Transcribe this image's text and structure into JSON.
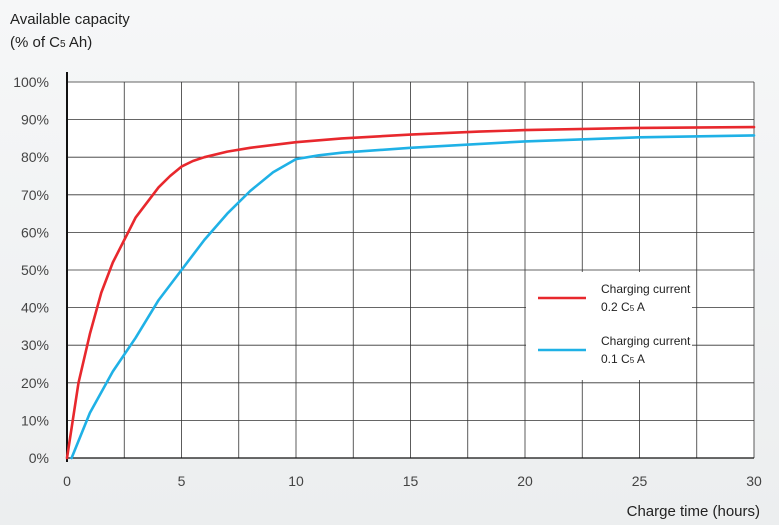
{
  "chart_data": {
    "type": "line",
    "ylabel_line1": "Available capacity",
    "ylabel_line2": "(% of C",
    "ylabel_sub": "5",
    "ylabel_tail": " Ah)",
    "xlabel": "Charge time (hours)",
    "xlim": [
      0,
      30
    ],
    "ylim": [
      0,
      100
    ],
    "x_ticks": [
      0,
      5,
      10,
      15,
      20,
      25,
      30
    ],
    "y_ticks": [
      0,
      10,
      20,
      30,
      40,
      50,
      60,
      70,
      80,
      90,
      100
    ],
    "y_tick_suffix": "%",
    "grid": true,
    "legend_position": "right",
    "series": [
      {
        "name": "Charging current 0.2 C5 A",
        "legend_line1": "Charging current",
        "legend_line2_pre": "0.2 C",
        "legend_line2_sub": "5",
        "legend_line2_post": " A",
        "color": "#e8282d",
        "points": [
          [
            0,
            0
          ],
          [
            0.5,
            20
          ],
          [
            1,
            33
          ],
          [
            1.5,
            44
          ],
          [
            2,
            52
          ],
          [
            2.5,
            58
          ],
          [
            3,
            64
          ],
          [
            3.5,
            68
          ],
          [
            4,
            72
          ],
          [
            4.5,
            75
          ],
          [
            5,
            77.5
          ],
          [
            5.5,
            79
          ],
          [
            6,
            80
          ],
          [
            7,
            81.5
          ],
          [
            8,
            82.5
          ],
          [
            10,
            84
          ],
          [
            12,
            85
          ],
          [
            15,
            86
          ],
          [
            18,
            86.8
          ],
          [
            20,
            87.2
          ],
          [
            25,
            87.8
          ],
          [
            30,
            88
          ]
        ]
      },
      {
        "name": "Charging current 0.1 C5 A",
        "legend_line1": "Charging current",
        "legend_line2_pre": "0.1 C",
        "legend_line2_sub": "5",
        "legend_line2_post": " A",
        "color": "#1fb1e6",
        "points": [
          [
            0.2,
            0
          ],
          [
            1,
            12
          ],
          [
            2,
            23
          ],
          [
            3,
            32
          ],
          [
            4,
            42
          ],
          [
            5,
            50
          ],
          [
            6,
            58
          ],
          [
            7,
            65
          ],
          [
            8,
            71
          ],
          [
            9,
            76
          ],
          [
            10,
            79.5
          ],
          [
            11,
            80.5
          ],
          [
            12,
            81.2
          ],
          [
            15,
            82.5
          ],
          [
            20,
            84.2
          ],
          [
            25,
            85.3
          ],
          [
            30,
            85.8
          ]
        ]
      }
    ]
  }
}
